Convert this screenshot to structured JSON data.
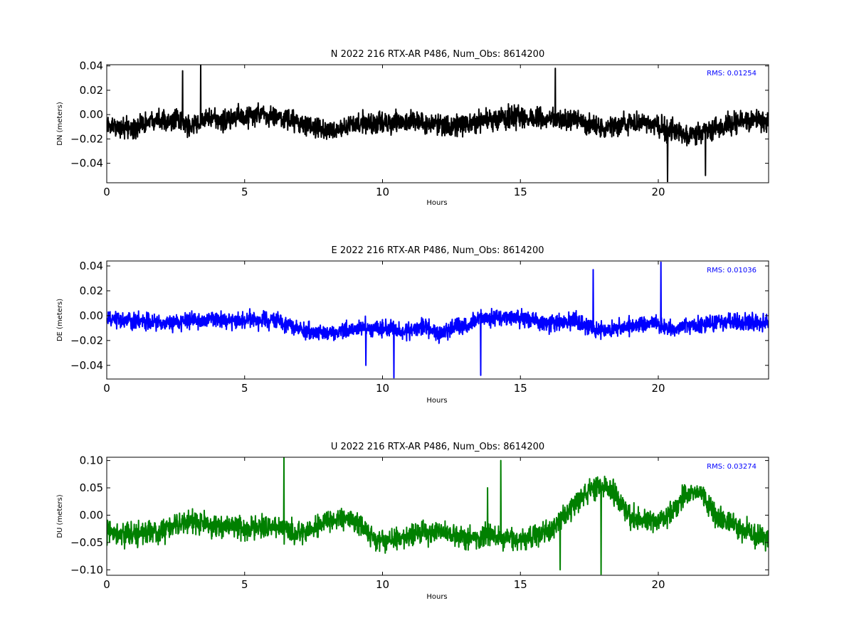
{
  "chart_data": [
    {
      "type": "line",
      "title": "N 2022 216 RTX-AR  P486, Num_Obs: 8614200",
      "xlabel": "Hours",
      "ylabel": "DN (meters)",
      "xlim": [
        0,
        24
      ],
      "ylim": [
        -0.056,
        0.041
      ],
      "xticks": [
        "0",
        "5",
        "10",
        "15",
        "20"
      ],
      "yticks": [
        "−0.04",
        "−0.02",
        "0.00",
        "0.02",
        "0.04"
      ],
      "ytick_values": [
        -0.04,
        -0.02,
        0.0,
        0.02,
        0.04
      ],
      "annotation": "RMS:  0.01254",
      "annotation_color": "#0000ff",
      "series_color": "#000000",
      "noise_amplitude": 0.013,
      "spike_peaks": [
        0.041,
        0.038,
        -0.055,
        -0.05,
        0.036
      ],
      "series": [
        {
          "x": [
            0,
            1,
            1.8,
            2.5,
            3,
            3.5,
            4,
            4.5,
            5,
            5.5,
            6,
            6.5,
            7,
            7.5,
            8,
            8.5,
            9,
            9.5,
            10,
            11,
            12,
            12.5,
            13,
            14,
            15,
            15.5,
            16,
            17,
            17.5,
            18,
            18.5,
            19,
            19.5,
            20,
            20.5,
            21,
            21.5,
            22,
            22.5,
            23,
            23.5,
            24
          ],
          "y": [
            -0.01,
            -0.012,
            -0.002,
            -0.005,
            -0.01,
            -0.004,
            -0.005,
            -0.003,
            -0.002,
            0.0,
            -0.002,
            -0.004,
            -0.006,
            -0.012,
            -0.012,
            -0.012,
            -0.008,
            -0.008,
            -0.007,
            -0.005,
            -0.008,
            -0.01,
            -0.008,
            -0.004,
            -0.002,
            -0.004,
            -0.003,
            -0.004,
            -0.008,
            -0.012,
            -0.01,
            -0.006,
            -0.006,
            -0.01,
            -0.013,
            -0.018,
            -0.014,
            -0.012,
            -0.008,
            -0.003,
            -0.004,
            -0.008
          ]
        }
      ]
    },
    {
      "type": "line",
      "title": "E 2022 216 RTX-AR  P486, Num_Obs: 8614200",
      "xlabel": "Hours",
      "ylabel": "DE (meters)",
      "xlim": [
        0,
        24
      ],
      "ylim": [
        -0.051,
        0.044
      ],
      "xticks": [
        "0",
        "5",
        "10",
        "15",
        "20"
      ],
      "yticks": [
        "−0.04",
        "−0.02",
        "0.00",
        "0.02",
        "0.04"
      ],
      "ytick_values": [
        -0.04,
        -0.02,
        0.0,
        0.02,
        0.04
      ],
      "annotation": "RMS:  0.01036",
      "annotation_color": "#0000ff",
      "series_color": "#0000ff",
      "noise_amplitude": 0.01,
      "spike_peaks": [
        0.043,
        -0.05,
        -0.048,
        0.037,
        -0.04
      ],
      "series": [
        {
          "x": [
            0,
            1,
            2,
            3,
            3.5,
            4,
            4.5,
            5,
            5.5,
            6,
            7,
            7.5,
            8,
            8.5,
            9,
            10,
            11,
            11.5,
            12,
            12.5,
            13,
            13.5,
            14,
            15,
            16,
            17,
            17.5,
            18,
            19,
            20,
            20.5,
            21,
            22,
            23,
            24
          ],
          "y": [
            -0.004,
            -0.004,
            -0.006,
            -0.004,
            -0.004,
            -0.002,
            -0.005,
            -0.004,
            -0.004,
            -0.003,
            -0.01,
            -0.014,
            -0.013,
            -0.013,
            -0.01,
            -0.01,
            -0.012,
            -0.008,
            -0.016,
            -0.01,
            -0.008,
            -0.002,
            -0.002,
            -0.002,
            -0.006,
            -0.005,
            -0.01,
            -0.012,
            -0.008,
            -0.006,
            -0.012,
            -0.008,
            -0.006,
            -0.005,
            -0.006
          ]
        }
      ]
    },
    {
      "type": "line",
      "title": "U 2022 216 RTX-AR  P486, Num_Obs: 8614200",
      "xlabel": "Hours",
      "ylabel": "DU (meters)",
      "xlim": [
        0,
        24
      ],
      "ylim": [
        -0.11,
        0.106
      ],
      "xticks": [
        "0",
        "5",
        "10",
        "15",
        "20"
      ],
      "yticks": [
        "−0.10",
        "−0.05",
        "0.00",
        "0.05",
        "0.10"
      ],
      "ytick_values": [
        -0.1,
        -0.05,
        0.0,
        0.05,
        0.1
      ],
      "annotation": "RMS:  0.03274",
      "annotation_color": "#0000ff",
      "series_color": "#008000",
      "noise_amplitude": 0.03,
      "spike_peaks": [
        0.105,
        0.1,
        -0.108,
        -0.1,
        0.05
      ],
      "series": [
        {
          "x": [
            0,
            1,
            2,
            3,
            4,
            5,
            6,
            7,
            8,
            9,
            9.5,
            10,
            11,
            12,
            13,
            14,
            15,
            16,
            16.5,
            17,
            17.5,
            18,
            18.5,
            19,
            19.5,
            20,
            20.5,
            21,
            21.5,
            22,
            22.5,
            23,
            24
          ],
          "y": [
            -0.03,
            -0.035,
            -0.03,
            -0.01,
            -0.02,
            -0.025,
            -0.02,
            -0.035,
            -0.01,
            -0.01,
            -0.03,
            -0.05,
            -0.035,
            -0.03,
            -0.04,
            -0.04,
            -0.045,
            -0.03,
            -0.005,
            0.02,
            0.045,
            0.055,
            0.035,
            -0.005,
            -0.01,
            -0.01,
            0.005,
            0.04,
            0.045,
            0.005,
            -0.01,
            -0.025,
            -0.045
          ]
        }
      ]
    }
  ]
}
